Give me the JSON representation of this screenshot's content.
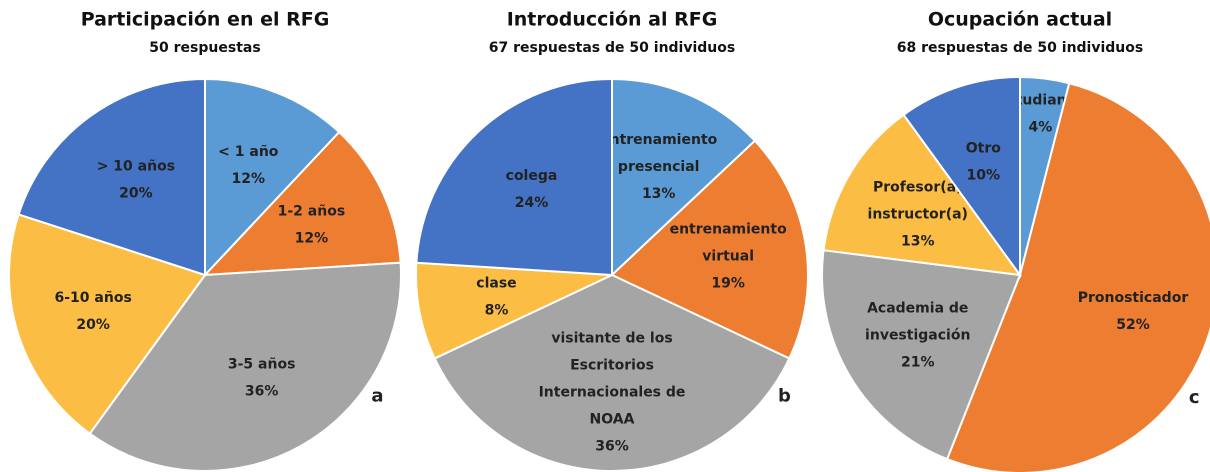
{
  "chart_data": [
    {
      "type": "pie",
      "title": "Participación en el RFG",
      "subtitle": "50 respuestas",
      "annotation": "a",
      "categories": [
        "< 1 año",
        "1-2 años",
        "3-5 años",
        "6-10 años",
        "> 10 años"
      ],
      "values": [
        12,
        12,
        36,
        20,
        20
      ],
      "value_labels": [
        "12%",
        "12%",
        "36%",
        "20%",
        "20%"
      ],
      "colors": [
        "#5b9bd5",
        "#ed7d31",
        "#a5a5a5",
        "#fbbd44",
        "#4472c4"
      ]
    },
    {
      "type": "pie",
      "title": "Introducción al RFG",
      "subtitle": "67 respuestas de 50 individuos",
      "annotation": "b",
      "categories": [
        "entrenamiento\npresencial",
        "entrenamiento\nvirtual",
        "visitante de los\nEscritorios\nInternacionales de\nNOAA",
        "clase",
        "colega"
      ],
      "values": [
        13,
        19,
        36,
        8,
        24
      ],
      "value_labels": [
        "13%",
        "19%",
        "36%",
        "8%",
        "24%"
      ],
      "colors": [
        "#5b9bd5",
        "#ed7d31",
        "#a5a5a5",
        "#fbbd44",
        "#4472c4"
      ]
    },
    {
      "type": "pie",
      "title": "Ocupación actual",
      "subtitle": "68 respuestas de 50 individuos",
      "annotation": "c",
      "categories": [
        "Estudiante",
        "Pronosticador",
        "Academia de\ninvestigación",
        "Profesor(a)\ninstructor(a)",
        "Otro"
      ],
      "values": [
        4,
        52,
        21,
        13,
        10
      ],
      "value_labels": [
        "4%",
        "52%",
        "21%",
        "13%",
        "10%"
      ],
      "colors": [
        "#5b9bd5",
        "#ed7d31",
        "#a5a5a5",
        "#fbbd44",
        "#4472c4"
      ]
    }
  ]
}
